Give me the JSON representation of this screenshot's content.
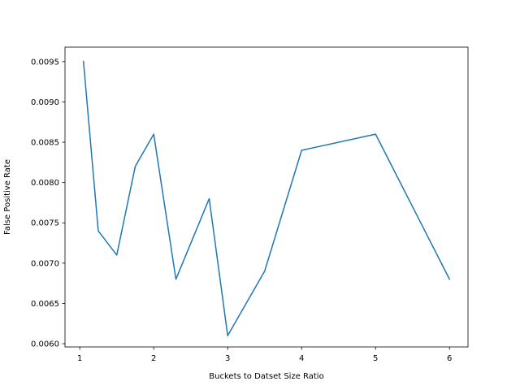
{
  "chart_data": {
    "type": "line",
    "title": "",
    "xlabel": "Buckets to Datset Size Ratio",
    "ylabel": "False Positive Rate",
    "xlim": [
      0.8,
      6.25
    ],
    "ylim": [
      0.00596,
      0.00968
    ],
    "xticks": [
      1,
      2,
      3,
      4,
      5,
      6
    ],
    "xtick_labels": [
      "1",
      "2",
      "3",
      "4",
      "5",
      "6"
    ],
    "yticks": [
      0.006,
      0.0065,
      0.007,
      0.0075,
      0.008,
      0.0085,
      0.009,
      0.0095
    ],
    "ytick_labels": [
      "0.0060",
      "0.0065",
      "0.0070",
      "0.0075",
      "0.0080",
      "0.0085",
      "0.0090",
      "0.0095"
    ],
    "grid": false,
    "series": [
      {
        "color": "#1f77b4",
        "x": [
          1.05,
          1.25,
          1.5,
          1.75,
          2.0,
          2.3,
          2.75,
          3.0,
          3.5,
          4.0,
          5.0,
          6.0
        ],
        "y": [
          0.0095,
          0.0074,
          0.0071,
          0.0082,
          0.0086,
          0.0068,
          0.0078,
          0.0061,
          0.0069,
          0.0084,
          0.0086,
          0.0068
        ]
      }
    ]
  }
}
